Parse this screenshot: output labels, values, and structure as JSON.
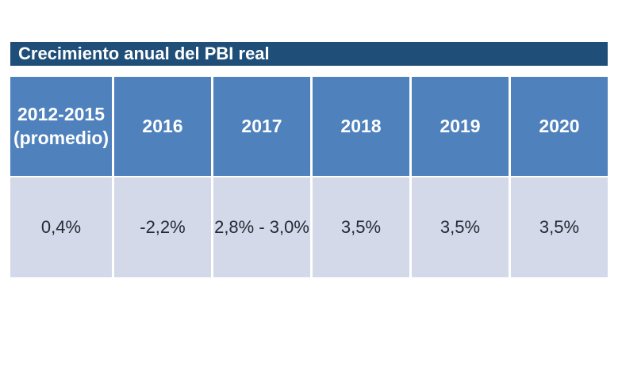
{
  "title_bar": {
    "label": "Crecimiento anual del PBI real"
  },
  "table": {
    "columns": [
      {
        "header": "2012-2015 (promedio)",
        "value": "0,4%"
      },
      {
        "header": "2016",
        "value": "-2,2%"
      },
      {
        "header": "2017",
        "value": "2,8% - 3,0%"
      },
      {
        "header": "2018",
        "value": "3,5%"
      },
      {
        "header": "2019",
        "value": "3,5%"
      },
      {
        "header": "2020",
        "value": "3,5%"
      }
    ]
  },
  "colors": {
    "title_bar_bg": "#1F4E79",
    "title_bar_text": "#FFFFFF",
    "header_bg": "#4F81BD",
    "header_text": "#FFFFFF",
    "value_row_bg": "#D3D9E8",
    "value_text": "#252A35",
    "page_bg": "#FFFFFF"
  },
  "chart_data": {
    "type": "table",
    "title": "Crecimiento anual del PBI real",
    "categories": [
      "2012-2015 (promedio)",
      "2016",
      "2017",
      "2018",
      "2019",
      "2020"
    ],
    "values": [
      "0,4%",
      "-2,2%",
      "2,8% - 3,0%",
      "3,5%",
      "3,5%",
      "3,5%"
    ]
  }
}
